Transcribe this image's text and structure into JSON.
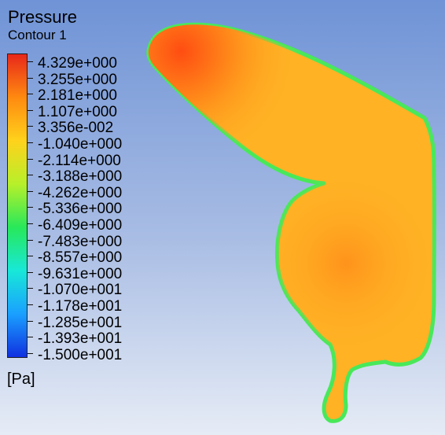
{
  "legend": {
    "title": "Pressure",
    "subtitle": "Contour 1",
    "units": "[Pa]",
    "labels": [
      "4.329e+000",
      "3.255e+000",
      "2.181e+000",
      "1.107e+000",
      "3.356e-002",
      "-1.040e+000",
      "-2.114e+000",
      "-3.188e+000",
      "-4.262e+000",
      "-5.336e+000",
      "-6.409e+000",
      "-7.483e+000",
      "-8.557e+000",
      "-9.631e+000",
      "-1.070e+001",
      "-1.178e+001",
      "-1.285e+001",
      "-1.393e+001",
      "-1.500e+001"
    ],
    "colors": [
      "#e8281a",
      "#ff8a10",
      "#ffd21c",
      "#b7f02a",
      "#28e85a",
      "#18e8d8",
      "#1aa0ff",
      "#1030e0"
    ]
  },
  "contour": {
    "edge_color": "#49e85a",
    "fill_main": "#ffb224",
    "fill_hot": "#ff4d12",
    "fill_warm": "#ff8d1a"
  }
}
